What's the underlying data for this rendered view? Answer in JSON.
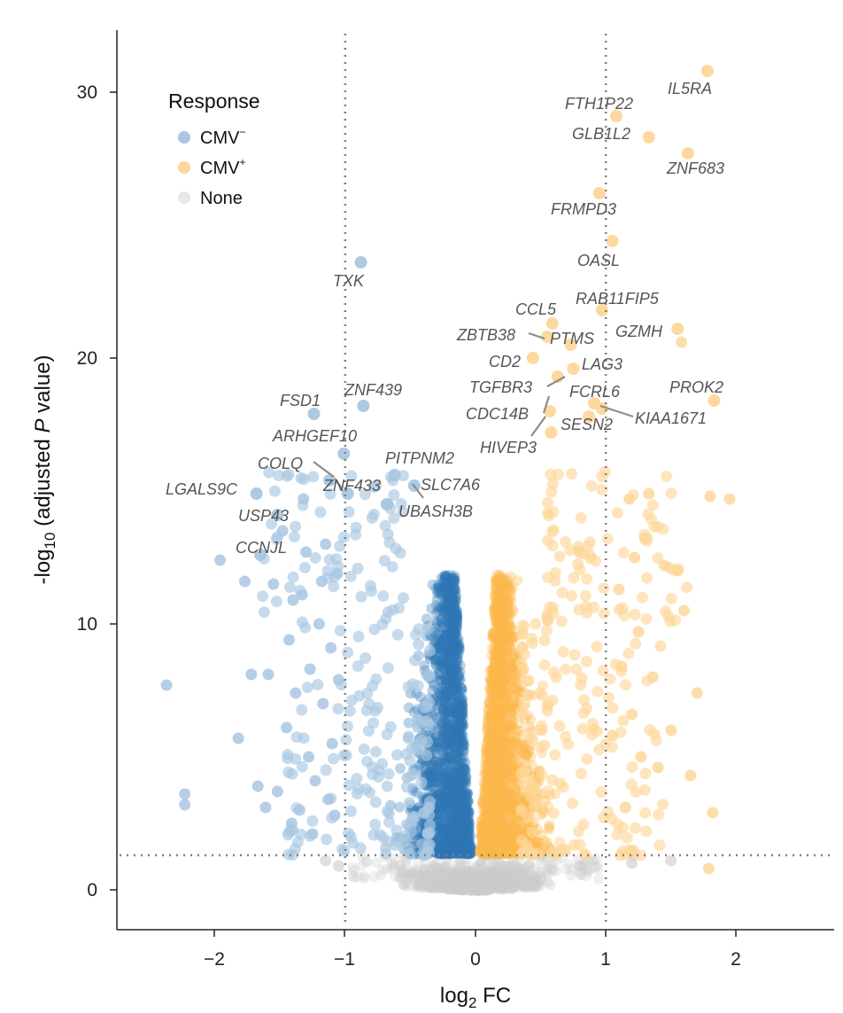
{
  "chart_data": {
    "type": "scatter",
    "subtype": "volcano",
    "title": "",
    "xlabel": {
      "prefix": "log",
      "sub": "2",
      "suffix": " FC"
    },
    "ylabel": {
      "prefix": "-log",
      "sub": "10",
      "middle": " (adjusted ",
      "italic": "P",
      "suffix": " value)"
    },
    "xlim": [
      -2.65,
      2.75
    ],
    "ylim": [
      -1.5,
      32.3
    ],
    "xticks": [
      -2,
      -1,
      0,
      1,
      2
    ],
    "xtick_labels": [
      "−2",
      "−1",
      "0",
      "1",
      "2"
    ],
    "yticks": [
      0,
      10,
      20,
      30
    ],
    "ytick_labels": [
      "0",
      "10",
      "20",
      "30"
    ],
    "thresholds": {
      "fc": [
        -1,
        1
      ],
      "padj_log10": 1.3
    },
    "legend": {
      "title": "Response",
      "position": "top-left",
      "entries": [
        {
          "base": "CMV",
          "sup": "−",
          "color": "#a9c7e2"
        },
        {
          "base": "CMV",
          "sup": "+",
          "color": "#fdd79a"
        },
        {
          "base": "None",
          "sup": "",
          "color": "#e8e8e8"
        }
      ]
    },
    "colors": {
      "cmv_neg_dense": "#2e76b4",
      "cmv_neg_light": "#a9c7e2",
      "cmv_pos_dense": "#fdb94c",
      "cmv_pos_light": "#fdd79a",
      "none": "#cccccc",
      "threshold_line": "#7f7f7f"
    },
    "labeled_genes": [
      {
        "name": "IL5RA",
        "x": 1.78,
        "y": 30.8
      },
      {
        "name": "FTH1P22",
        "x": 1.08,
        "y": 29.1
      },
      {
        "name": "GLB1L2",
        "x": 1.33,
        "y": 28.3
      },
      {
        "name": "ZNF683",
        "x": 1.63,
        "y": 27.7
      },
      {
        "name": "FRMPD3",
        "x": 0.95,
        "y": 26.2
      },
      {
        "name": "OASL",
        "x": 1.05,
        "y": 24.4
      },
      {
        "name": "RAB11FIP5",
        "x": 0.97,
        "y": 21.8
      },
      {
        "name": "CCL5",
        "x": 0.59,
        "y": 21.3
      },
      {
        "name": "GZMH",
        "x": 1.55,
        "y": 21.1
      },
      {
        "name": "ZBTB38",
        "x": 0.55,
        "y": 20.8
      },
      {
        "name": "PTMS",
        "x": 0.73,
        "y": 20.5
      },
      {
        "name": "CD2",
        "x": 0.44,
        "y": 20.0
      },
      {
        "name": "LAG3",
        "x": 0.75,
        "y": 19.6
      },
      {
        "name": "TGFBR3",
        "x": 0.63,
        "y": 19.3
      },
      {
        "name": "FCRL6",
        "x": 0.91,
        "y": 18.3
      },
      {
        "name": "PROK2",
        "x": 1.83,
        "y": 18.4
      },
      {
        "name": "CDC14B",
        "x": 0.57,
        "y": 18.0
      },
      {
        "name": "KIAA1671",
        "x": 0.97,
        "y": 18.1
      },
      {
        "name": "SESN2",
        "x": 0.87,
        "y": 17.8
      },
      {
        "name": "HIVEP3",
        "x": 0.58,
        "y": 17.2
      },
      {
        "name": "TXK",
        "x": -0.88,
        "y": 23.6
      },
      {
        "name": "ZNF439",
        "x": -0.86,
        "y": 18.2
      },
      {
        "name": "FSD1",
        "x": -1.24,
        "y": 17.9
      },
      {
        "name": "ARHGEF10",
        "x": -1.01,
        "y": 16.4
      },
      {
        "name": "PITPNM2",
        "x": -0.62,
        "y": 15.6
      },
      {
        "name": "COLQ",
        "x": -1.12,
        "y": 15.4
      },
      {
        "name": "SLC7A6",
        "x": -0.47,
        "y": 15.2
      },
      {
        "name": "ZNF433",
        "x": -0.98,
        "y": 14.9
      },
      {
        "name": "UBASH3B",
        "x": -0.68,
        "y": 14.5
      },
      {
        "name": "LGALS9C",
        "x": -1.68,
        "y": 14.9
      },
      {
        "name": "USP43",
        "x": -1.52,
        "y": 14.1
      },
      {
        "name": "CCNJL",
        "x": -1.65,
        "y": 12.6
      }
    ],
    "extra_points": {
      "down": [
        [
          -2.37,
          7.7
        ],
        [
          -2.23,
          3.6
        ],
        [
          -2.23,
          3.2
        ],
        [
          -1.96,
          12.4
        ],
        [
          -1.82,
          5.7
        ],
        [
          -1.77,
          11.6
        ],
        [
          -1.72,
          8.1
        ],
        [
          -1.67,
          3.9
        ],
        [
          -1.61,
          3.1
        ],
        [
          -1.59,
          8.1
        ],
        [
          -1.55,
          11.5
        ],
        [
          -1.52,
          3.7
        ],
        [
          -1.48,
          13.5
        ],
        [
          -1.45,
          6.1
        ],
        [
          -1.43,
          9.4
        ],
        [
          -1.41,
          2.5
        ],
        [
          -1.4,
          10.9
        ],
        [
          -1.38,
          7.4
        ],
        [
          -1.35,
          3.0
        ],
        [
          -1.33,
          11.1
        ],
        [
          -1.32,
          14.7
        ],
        [
          -1.3,
          12.7
        ],
        [
          -1.28,
          5.0
        ],
        [
          -1.27,
          8.3
        ],
        [
          -1.25,
          2.1
        ],
        [
          -1.23,
          4.1
        ],
        [
          -1.2,
          10.0
        ],
        [
          -1.18,
          11.6
        ],
        [
          -1.17,
          7.0
        ],
        [
          -1.15,
          13.0
        ],
        [
          -1.13,
          3.4
        ],
        [
          -1.11,
          9.1
        ],
        [
          -1.1,
          5.5
        ],
        [
          -1.08,
          2.8
        ],
        [
          -1.06,
          11.9
        ],
        [
          -1.05,
          7.9
        ]
      ],
      "up": [
        [
          1.05,
          5.8
        ],
        [
          1.1,
          11.3
        ],
        [
          1.12,
          8.4
        ],
        [
          1.15,
          3.1
        ],
        [
          1.18,
          14.7
        ],
        [
          1.2,
          6.6
        ],
        [
          1.22,
          12.5
        ],
        [
          1.25,
          9.7
        ],
        [
          1.27,
          5.0
        ],
        [
          1.3,
          13.2
        ],
        [
          1.33,
          14.9
        ],
        [
          1.36,
          8.0
        ],
        [
          1.4,
          4.6
        ],
        [
          1.45,
          12.2
        ],
        [
          1.5,
          6.0
        ],
        [
          1.55,
          12.0
        ],
        [
          1.6,
          10.5
        ],
        [
          1.65,
          4.3
        ],
        [
          1.7,
          7.4
        ],
        [
          1.8,
          14.8
        ],
        [
          1.82,
          2.9
        ],
        [
          1.95,
          14.7
        ],
        [
          1.58,
          20.6
        ],
        [
          1.79,
          0.8
        ]
      ],
      "none": [
        [
          -1.15,
          1.1
        ],
        [
          -1.05,
          0.9
        ],
        [
          1.2,
          1.0
        ],
        [
          1.5,
          1.1
        ],
        [
          0.8,
          0.9
        ]
      ]
    }
  }
}
